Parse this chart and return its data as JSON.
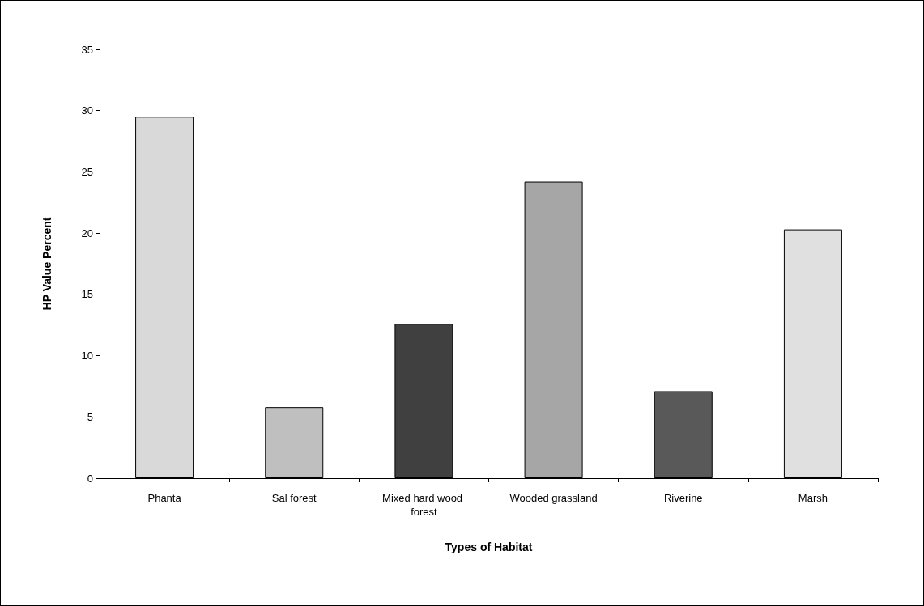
{
  "chart_data": {
    "type": "bar",
    "xlabel": "Types of Habitat",
    "ylabel": "HP Value Percent",
    "categories": [
      "Phanta",
      "Sal forest",
      "Mixed hard wood forest",
      "Wooded grassland",
      "Riverine",
      "Marsh"
    ],
    "values": [
      29.5,
      5.8,
      12.6,
      24.2,
      7.1,
      20.3
    ],
    "colors": [
      "#d9d9d9",
      "#bfbfbf",
      "#404040",
      "#a6a6a6",
      "#595959",
      "#e0e0e0"
    ],
    "ylim": [
      0,
      35
    ],
    "yticks": [
      0,
      5,
      10,
      15,
      20,
      25,
      30,
      35
    ],
    "grid": false
  }
}
